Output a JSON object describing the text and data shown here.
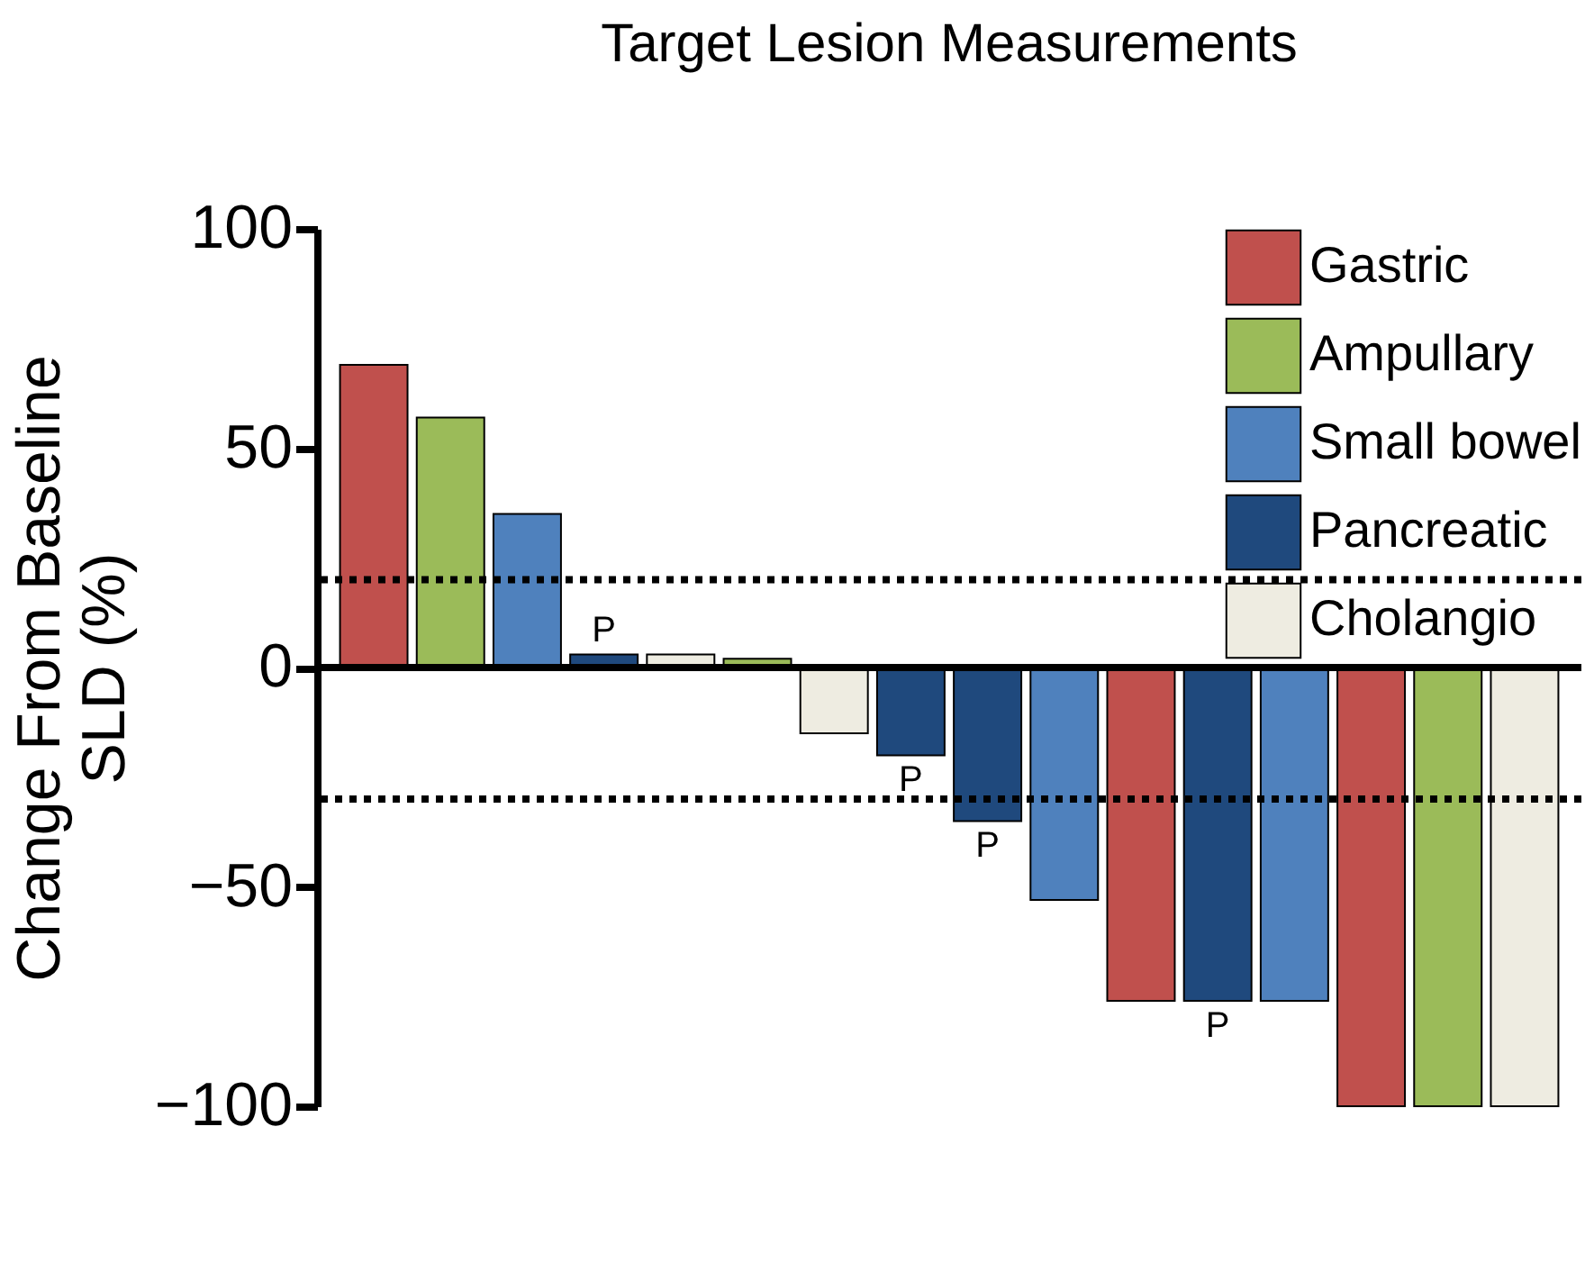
{
  "chart_data": {
    "type": "bar",
    "title": "Target Lesion Measurements",
    "ylabel": "Change From Baseline\nSLD (%)",
    "categories": [
      null,
      null,
      null,
      null,
      null,
      null,
      null,
      null,
      null,
      null,
      null,
      null,
      null,
      null,
      null,
      null
    ],
    "series": [
      {
        "name": "Gastric",
        "color": "#c0504d",
        "values": [
          69,
          null,
          null,
          null,
          null,
          null,
          null,
          null,
          null,
          null,
          -76,
          null,
          null,
          -100,
          null,
          null
        ]
      },
      {
        "name": "Ampullary",
        "color": "#9bbb59",
        "values": [
          null,
          57,
          null,
          null,
          null,
          2,
          null,
          null,
          null,
          null,
          null,
          null,
          null,
          null,
          -100,
          null
        ]
      },
      {
        "name": "Small bowel",
        "color": "#4f81bd",
        "values": [
          null,
          null,
          35,
          null,
          null,
          null,
          null,
          null,
          null,
          -53,
          null,
          null,
          -76,
          null,
          null,
          null
        ]
      },
      {
        "name": "Pancreatic",
        "color": "#1f497d",
        "values": [
          null,
          null,
          null,
          3,
          null,
          null,
          null,
          -20,
          -35,
          null,
          null,
          -76,
          null,
          null,
          null,
          null
        ],
        "value_labels": [
          null,
          null,
          null,
          "P",
          null,
          null,
          null,
          "P",
          "P",
          null,
          null,
          "P",
          null,
          null,
          null,
          null
        ]
      },
      {
        "name": "Cholangio",
        "color": "#eeece1",
        "values": [
          null,
          null,
          null,
          null,
          3,
          null,
          -15,
          null,
          null,
          null,
          null,
          null,
          null,
          null,
          null,
          -100
        ]
      }
    ],
    "ylim": [
      -100,
      100
    ],
    "yticks": [
      100,
      50,
      0,
      -50,
      -100
    ],
    "ref_lines": [
      {
        "axis": "y",
        "value": 20,
        "line_style": "dotted"
      },
      {
        "axis": "y",
        "value": -30,
        "line_style": "dotted"
      },
      {
        "axis": "y",
        "value": 0,
        "line_style": "solid"
      }
    ],
    "legend": "top right",
    "grid": false
  }
}
